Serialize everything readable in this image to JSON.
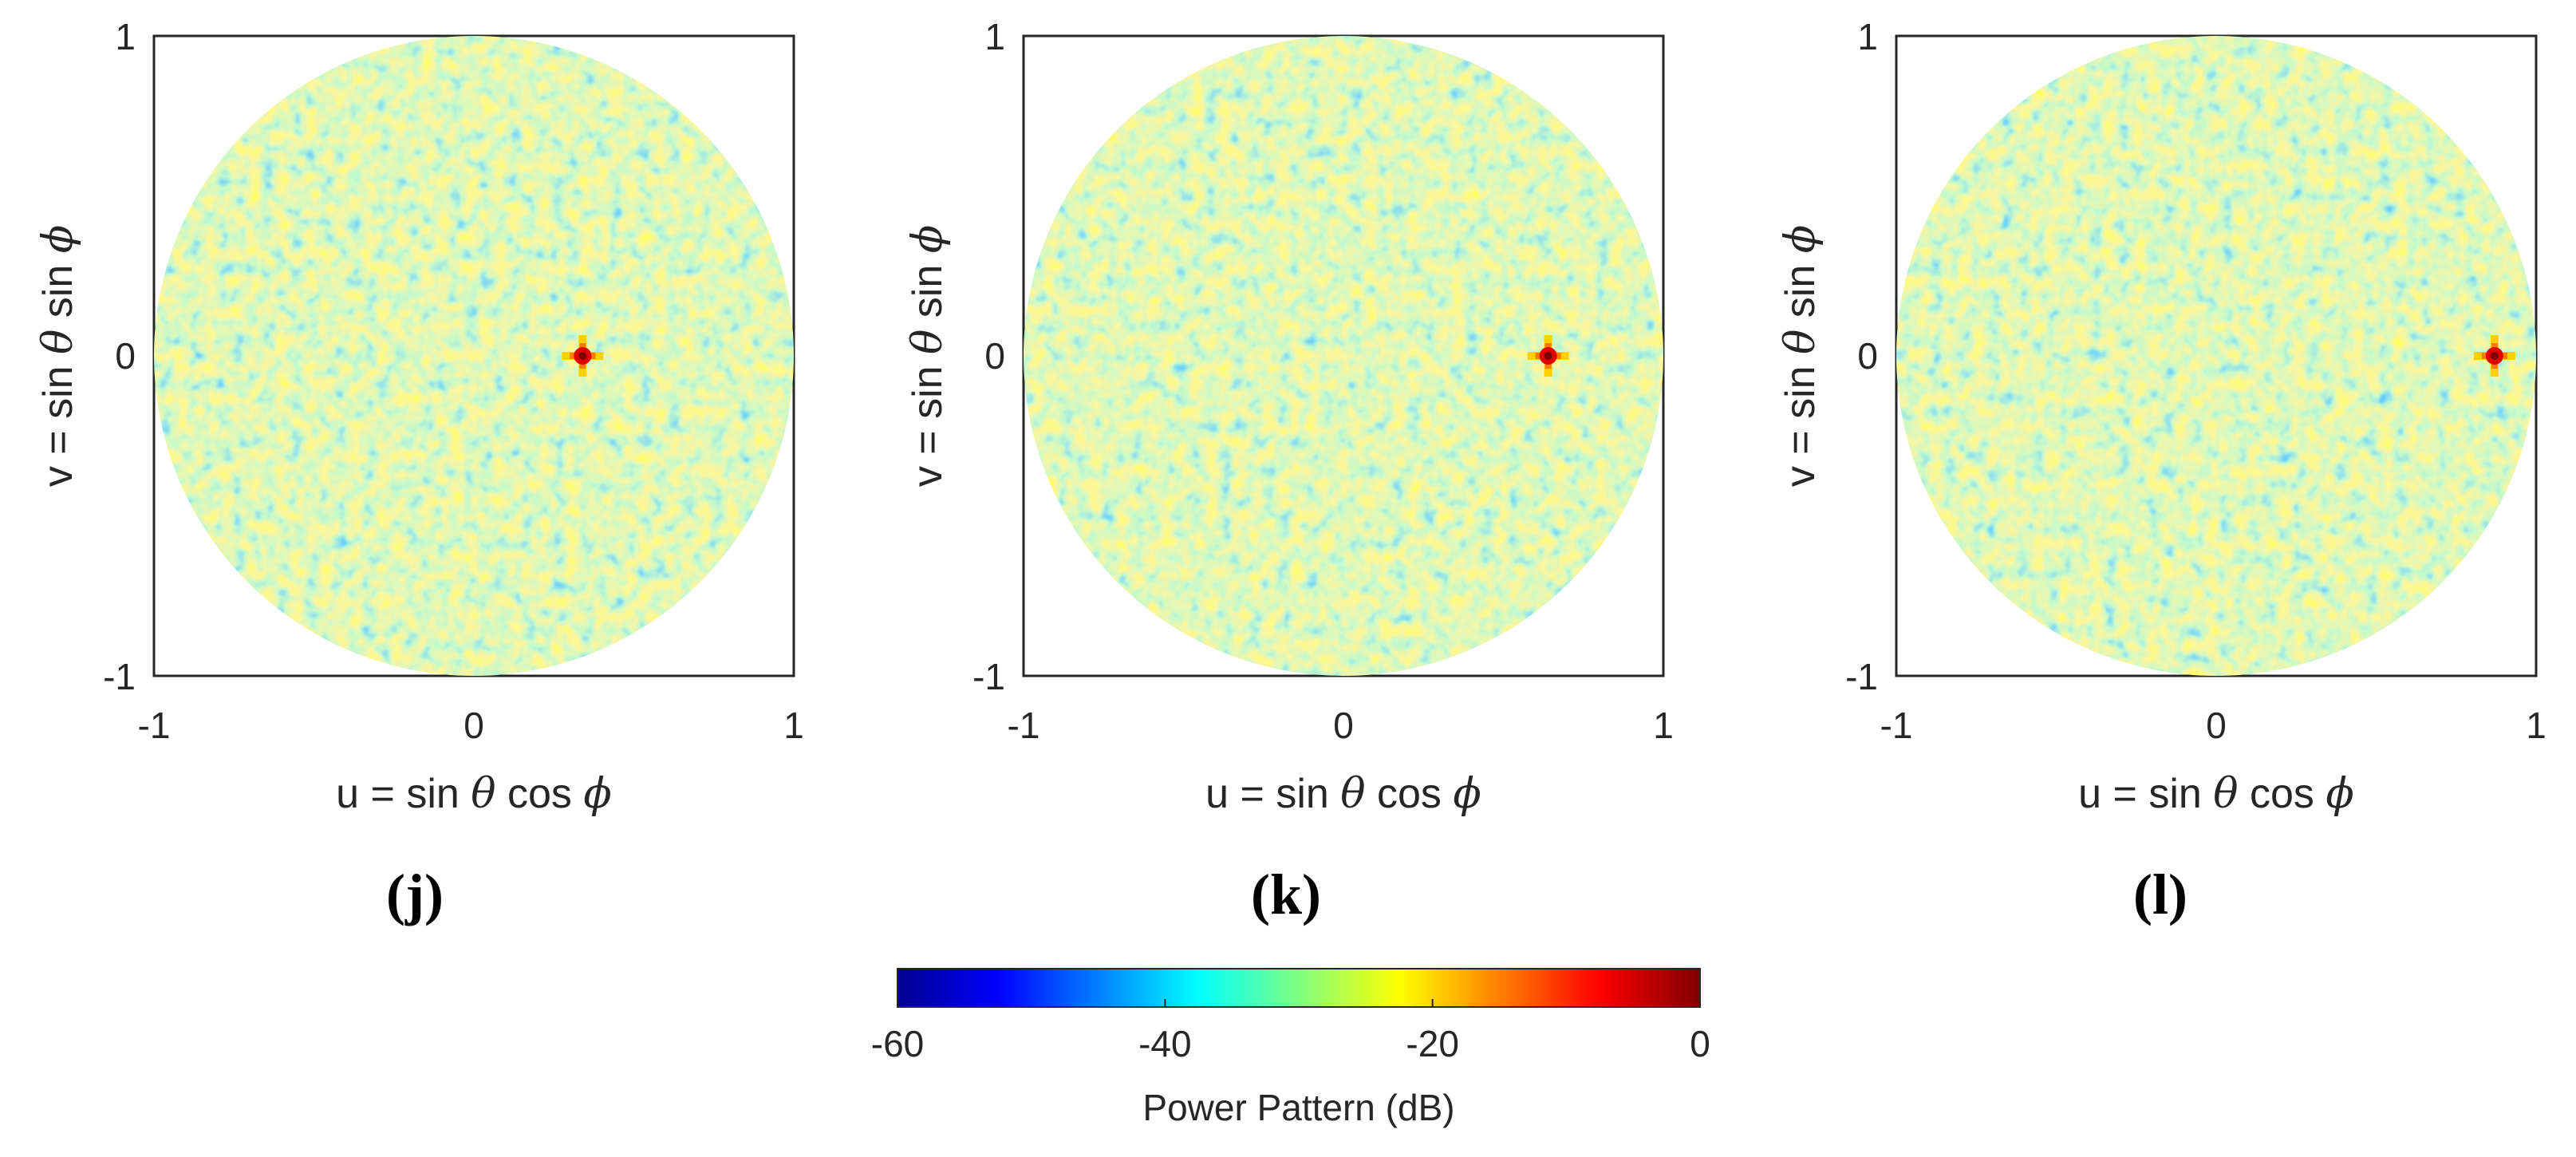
{
  "chart_data": [
    {
      "type": "heatmap",
      "panel_label": "(j)",
      "xlabel_prefix": "u = sin ",
      "xlabel_theta": "θ",
      "xlabel_mid": " cos ",
      "xlabel_phi": "ϕ",
      "ylabel_prefix": "v = sin ",
      "ylabel_theta": "θ",
      "ylabel_mid": " sin ",
      "ylabel_phi": "ϕ",
      "xlim": [
        -1,
        1
      ],
      "ylim": [
        -1,
        1
      ],
      "xticks": [
        "-1",
        "0",
        "1"
      ],
      "yticks": [
        "-1",
        "0",
        "1"
      ],
      "main_beam": {
        "u": 0.34,
        "v": 0.0,
        "peak_db": 0
      },
      "background_level_db": [
        -45,
        -25
      ]
    },
    {
      "type": "heatmap",
      "panel_label": "(k)",
      "xlabel_prefix": "u = sin ",
      "xlabel_theta": "θ",
      "xlabel_mid": " cos ",
      "xlabel_phi": "ϕ",
      "ylabel_prefix": "v = sin ",
      "ylabel_theta": "θ",
      "ylabel_mid": " sin ",
      "ylabel_phi": "ϕ",
      "xlim": [
        -1,
        1
      ],
      "ylim": [
        -1,
        1
      ],
      "xticks": [
        "-1",
        "0",
        "1"
      ],
      "yticks": [
        "-1",
        "0",
        "1"
      ],
      "main_beam": {
        "u": 0.64,
        "v": 0.0,
        "peak_db": 0
      },
      "background_level_db": [
        -45,
        -25
      ]
    },
    {
      "type": "heatmap",
      "panel_label": "(l)",
      "xlabel_prefix": "u = sin ",
      "xlabel_theta": "θ",
      "xlabel_mid": " cos ",
      "xlabel_phi": "ϕ",
      "ylabel_prefix": "v = sin ",
      "ylabel_theta": "θ",
      "ylabel_mid": " sin ",
      "ylabel_phi": "ϕ",
      "xlim": [
        -1,
        1
      ],
      "ylim": [
        -1,
        1
      ],
      "xticks": [
        "-1",
        "0",
        "1"
      ],
      "yticks": [
        "-1",
        "0",
        "1"
      ],
      "main_beam": {
        "u": 0.87,
        "v": 0.0,
        "peak_db": 0
      },
      "background_level_db": [
        -45,
        -25
      ]
    }
  ],
  "colorbar": {
    "label": "Power Pattern (dB)",
    "ticks": [
      "-60",
      "-40",
      "-20",
      "0"
    ],
    "range": [
      -60,
      0
    ],
    "colormap": "jet",
    "colors": [
      "#00008f",
      "#0000ff",
      "#00ffff",
      "#ffff00",
      "#ff0000",
      "#800000"
    ]
  }
}
